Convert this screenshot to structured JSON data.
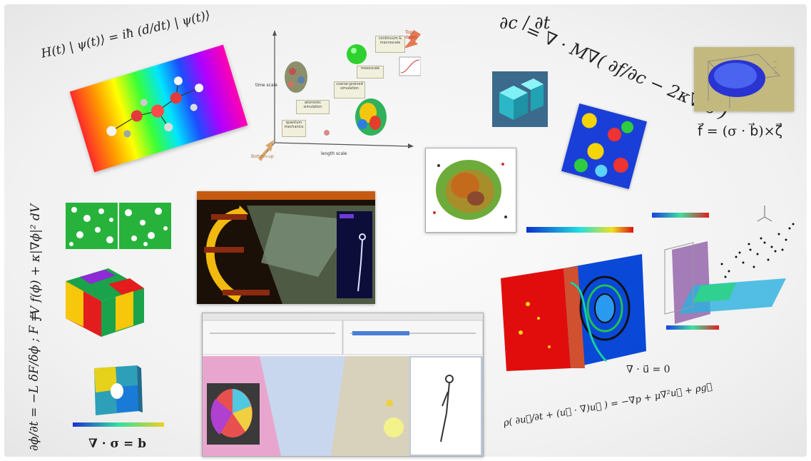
{
  "equations": {
    "schrodinger": "H(t) | ψ(t)⟩ = iħ (d/dt) | ψ(t)⟩",
    "cahn_hilliard_lhs": "∂c / ∂t",
    "cahn_hilliard_rhs": "= ∇ · M∇( ∂f/∂c − 2κ∇²c )",
    "force": "f⃗ = (σ · b⃗)×ζ⃗",
    "free_energy": "∫V f(ϕ) + κ|∇ϕ|² dV",
    "allen_cahn": "∂ϕ/∂t = −L δF/δϕ ; F =",
    "equilibrium": "∇ · σ = b",
    "continuity": "∇ · u⃗ = 0",
    "navier_stokes": "ρ( ∂u⃗/∂t + (u⃗ · ∇)u⃗ ) = −∇p + μ∇²u⃗ + ρg⃗"
  },
  "multiscale": {
    "top_down": "Top-down",
    "bottom_up": "Bottom-up",
    "y_label": "time scale",
    "x_label": "length scale",
    "steps": [
      "quantum mechanics",
      "atomistic simulation",
      "coarse-grained simulation",
      "mesoscale",
      "continuum & macroscale"
    ]
  },
  "colors": {
    "dark_bg": "#2b1a0e",
    "toolbar": "#e6e6e6",
    "heat_red": "#e10d0d",
    "heat_blue": "#0a48d8",
    "voxel_cyan": "#3ecfdc"
  }
}
